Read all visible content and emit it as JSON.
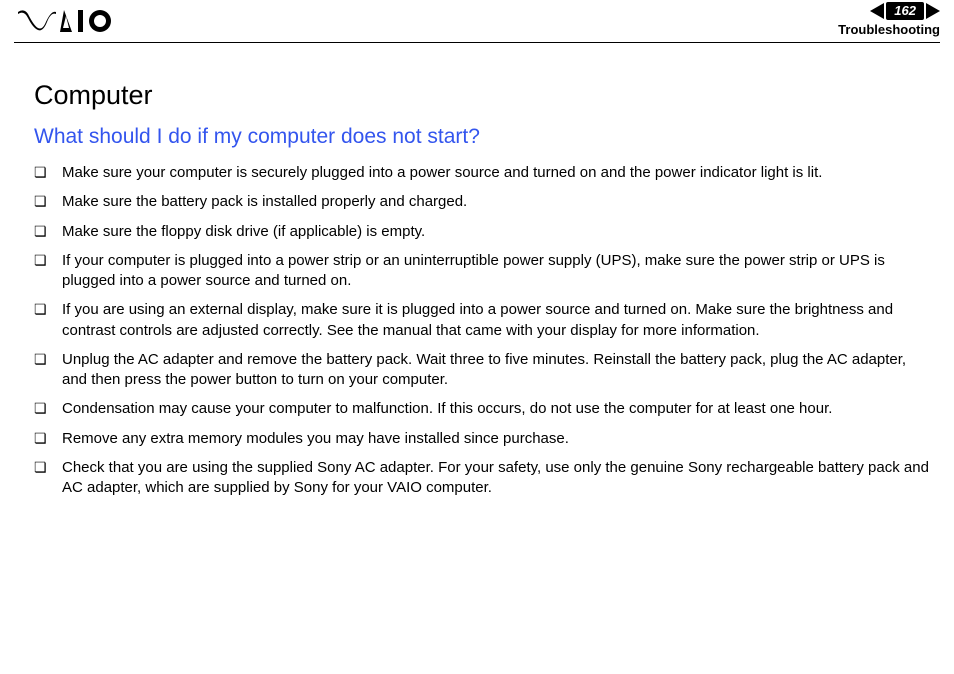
{
  "header": {
    "page_number": "162",
    "section": "Troubleshooting",
    "logo_fill": "#000000",
    "arrow_fill": "#000000"
  },
  "content": {
    "heading": "Computer",
    "subheading": "What should I do if my computer does not start?",
    "subheading_color": "#3355ee",
    "bullets": [
      "Make sure your computer is securely plugged into a power source and turned on and the power indicator light is lit.",
      "Make sure the battery pack is installed properly and charged.",
      "Make sure the floppy disk drive (if applicable) is empty.",
      "If your computer is plugged into a power strip or an uninterruptible power supply (UPS), make sure the power strip or UPS is plugged into a power source and turned on.",
      "If you are using an external display, make sure it is plugged into a power source and turned on. Make sure the brightness and contrast controls are adjusted correctly. See the manual that came with your display for more information.",
      "Unplug the AC adapter and remove the battery pack. Wait three to five minutes. Reinstall the battery pack, plug the AC adapter, and then press the power button to turn on your computer.",
      "Condensation may cause your computer to malfunction. If this occurs, do not use the computer for at least one hour.",
      "Remove any extra memory modules you may have installed since purchase.",
      "Check that you are using the supplied Sony AC adapter. For your safety, use only the genuine Sony rechargeable battery pack and AC adapter, which are supplied by Sony for your VAIO computer."
    ]
  }
}
